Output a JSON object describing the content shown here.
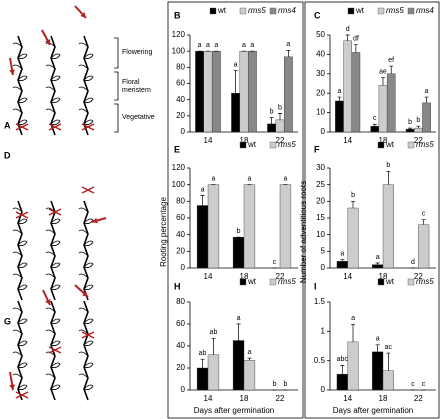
{
  "figure": {
    "panels": [
      "A",
      "D",
      "G"
    ],
    "annotations": [
      "Flowering",
      "Floral meristem",
      "Vegetative"
    ]
  },
  "chart_data": [
    {
      "type": "bar",
      "panel": "B",
      "categories": [
        "14",
        "18",
        "22"
      ],
      "ylim": [
        0,
        120
      ],
      "yticks": [
        0,
        20,
        40,
        60,
        80,
        100,
        120
      ],
      "series": [
        {
          "name": "wt",
          "color": "#000000",
          "values": [
            100,
            48,
            10
          ],
          "errors": [
            0,
            28,
            8
          ],
          "letters": [
            "a",
            "a",
            "b"
          ]
        },
        {
          "name": "rms5",
          "color": "#cccccc",
          "values": [
            100,
            100,
            15
          ],
          "errors": [
            0,
            0,
            8
          ],
          "letters": [
            "a",
            "a",
            "b"
          ]
        },
        {
          "name": "rms4",
          "color": "#888888",
          "values": [
            100,
            100,
            93
          ],
          "errors": [
            0,
            0,
            8
          ],
          "letters": [
            "a",
            "a",
            "a"
          ]
        }
      ]
    },
    {
      "type": "bar",
      "panel": "C",
      "categories": [
        "14",
        "18",
        "22"
      ],
      "ylim": [
        0,
        50
      ],
      "yticks": [
        0,
        10,
        20,
        30,
        40,
        50
      ],
      "series": [
        {
          "name": "wt",
          "color": "#000000",
          "values": [
            16,
            3,
            1.5
          ],
          "errors": [
            2,
            1,
            0.5
          ],
          "letters": [
            "a",
            "c",
            "b"
          ]
        },
        {
          "name": "rms5",
          "color": "#cccccc",
          "values": [
            47,
            24,
            2
          ],
          "errors": [
            3,
            4,
            1
          ],
          "letters": [
            "d",
            "ae",
            "b"
          ]
        },
        {
          "name": "rms4",
          "color": "#888888",
          "values": [
            41,
            30,
            15
          ],
          "errors": [
            4,
            4,
            3
          ],
          "letters": [
            "df",
            "ef",
            "a"
          ]
        }
      ]
    },
    {
      "type": "bar",
      "panel": "E",
      "categories": [
        "14",
        "18",
        "22"
      ],
      "ylim": [
        0,
        120
      ],
      "yticks": [
        0,
        20,
        40,
        60,
        80,
        100,
        120
      ],
      "ylabel": "Rooting percentage",
      "series": [
        {
          "name": "wt",
          "color": "#000000",
          "values": [
            75,
            37,
            0
          ],
          "errors": [
            12,
            0,
            0
          ],
          "letters": [
            "a",
            "b",
            "c"
          ]
        },
        {
          "name": "rms5",
          "color": "#cccccc",
          "values": [
            100,
            100,
            100
          ],
          "errors": [
            0,
            0,
            0
          ],
          "letters": [
            "a",
            "a",
            "a"
          ]
        }
      ]
    },
    {
      "type": "bar",
      "panel": "F",
      "categories": [
        "14",
        "18",
        "22"
      ],
      "ylim": [
        0,
        30
      ],
      "yticks": [
        0,
        5,
        10,
        15,
        20,
        25,
        30
      ],
      "ylabel": "Number of adventitious roots",
      "series": [
        {
          "name": "wt",
          "color": "#000000",
          "values": [
            2,
            1,
            0
          ],
          "errors": [
            0.5,
            0.5,
            0
          ],
          "letters": [
            "a",
            "a",
            "d"
          ]
        },
        {
          "name": "rms5",
          "color": "#cccccc",
          "values": [
            18,
            25,
            13
          ],
          "errors": [
            2,
            4,
            1.5
          ],
          "letters": [
            "b",
            "b",
            "c"
          ]
        }
      ]
    },
    {
      "type": "bar",
      "panel": "H",
      "categories": [
        "14",
        "18",
        "22"
      ],
      "ylim": [
        0,
        80
      ],
      "yticks": [
        0,
        20,
        40,
        60,
        80
      ],
      "xlabel": "Days after germination",
      "series": [
        {
          "name": "wt",
          "color": "#000000",
          "values": [
            20,
            45,
            0
          ],
          "errors": [
            8,
            15,
            0
          ],
          "letters": [
            "ab",
            "a",
            "b"
          ]
        },
        {
          "name": "rms5",
          "color": "#cccccc",
          "values": [
            32,
            27,
            0
          ],
          "errors": [
            15,
            2,
            0
          ],
          "letters": [
            "ab",
            "a",
            "b"
          ]
        }
      ]
    },
    {
      "type": "bar",
      "panel": "I",
      "categories": [
        "14",
        "18",
        "22"
      ],
      "ylim": [
        0,
        1.5
      ],
      "yticks": [
        0,
        0.5,
        1,
        1.5
      ],
      "xlabel": "Days after germination",
      "series": [
        {
          "name": "wt",
          "color": "#000000",
          "values": [
            0.27,
            0.65,
            0
          ],
          "errors": [
            0.15,
            0.12,
            0
          ],
          "letters": [
            "abc",
            "a",
            "c"
          ]
        },
        {
          "name": "rms5",
          "color": "#cccccc",
          "values": [
            0.82,
            0.33,
            0
          ],
          "errors": [
            0.3,
            0.3,
            0
          ],
          "letters": [
            "a",
            "ac",
            "c"
          ]
        }
      ]
    }
  ]
}
